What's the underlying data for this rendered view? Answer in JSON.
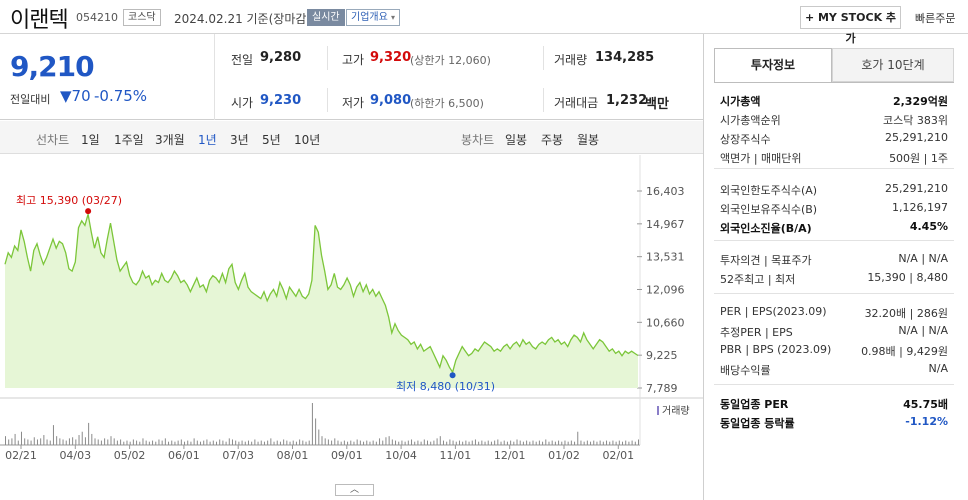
{
  "header": {
    "name": "이랜텍",
    "code": "054210",
    "market": "코스닥",
    "date": "2024.02.21 기준(장마감)",
    "live": "실시간",
    "corp_overview": "기업개요",
    "mystock": "+ MY STOCK 추가",
    "quick_order": "빠른주문"
  },
  "summary": {
    "price": "9,210",
    "change_label": "전일대비",
    "change_value": "▼70",
    "change_pct": "-0.75%",
    "prev_label": "전일",
    "prev": "9,280",
    "high_label": "고가",
    "high": "9,320",
    "high_sub": "(상한가 12,060)",
    "volume_label": "거래량",
    "volume": "134,285",
    "open_label": "시가",
    "open": "9,230",
    "low_label": "저가",
    "low": "9,080",
    "low_sub": "(하한가 6,500)",
    "amount_label": "거래대금",
    "amount": "1,232",
    "amount_unit": "백만"
  },
  "tabs": {
    "line_label": "선차트",
    "line": [
      "1일",
      "1주일",
      "3개월",
      "1년",
      "3년",
      "5년",
      "10년"
    ],
    "selected": "1년",
    "candle_label": "봉차트",
    "candle": [
      "일봉",
      "주봉",
      "월봉"
    ]
  },
  "chart_data": {
    "type": "area",
    "y_ticks": [
      "16,403",
      "14,967",
      "13,531",
      "12,096",
      "10,660",
      "9,225",
      "7,789"
    ],
    "ylim": [
      7789,
      16403
    ],
    "x_ticks": [
      "02/21",
      "04/03",
      "05/02",
      "06/01",
      "07/03",
      "08/01",
      "09/01",
      "10/04",
      "11/01",
      "12/01",
      "01/02",
      "02/01"
    ],
    "max_label": "최고 15,390 (03/27)",
    "min_label": "최저 8,480 (10/31)",
    "volume_label": "거래량",
    "colors": {
      "line": "#7cc63a",
      "fill": "#e6f6d6",
      "max": "#d30a0a",
      "min": "#2057c4"
    },
    "values": [
      13200,
      13700,
      13500,
      14000,
      13800,
      14700,
      14200,
      13500,
      12900,
      13800,
      14100,
      13600,
      13200,
      13500,
      13900,
      14300,
      13900,
      14200,
      14100,
      13700,
      13000,
      12900,
      13300,
      14800,
      15100,
      14900,
      15390,
      14600,
      13900,
      14400,
      13700,
      13500,
      14300,
      15000,
      14200,
      13400,
      12900,
      13100,
      13300,
      12700,
      12400,
      12300,
      12500,
      12900,
      12600,
      12700,
      12300,
      12500,
      12400,
      12800,
      12500,
      12400,
      12600,
      12900,
      12700,
      12400,
      12500,
      12300,
      12000,
      12300,
      12600,
      12200,
      12300,
      12000,
      12500,
      12700,
      12600,
      12400,
      12800,
      12400,
      13000,
      13200,
      12400,
      12100,
      12500,
      12800,
      12200,
      12000,
      11900,
      11800,
      11700,
      12000,
      11600,
      11900,
      12100,
      11800,
      12400,
      12100,
      11700,
      12200,
      12000,
      11800,
      12100,
      11800,
      11700,
      11900,
      12500,
      14900,
      14600,
      13600,
      12900,
      12100,
      12300,
      12800,
      12200,
      12100,
      12300,
      12600,
      12300,
      11800,
      12200,
      12400,
      12000,
      12300,
      11900,
      12100,
      11800,
      12000,
      11700,
      11400,
      10900,
      10200,
      10600,
      10300,
      10100,
      10000,
      9900,
      9700,
      9800,
      9500,
      9700,
      9400,
      9500,
      9600,
      9300,
      9000,
      8700,
      9200,
      9000,
      8700,
      8480,
      9000,
      9300,
      9600,
      9400,
      9200,
      9300,
      9500,
      9400,
      9600,
      9800,
      9700,
      9600,
      9400,
      9500,
      9400,
      9600,
      9700,
      9500,
      9700,
      9800,
      9600,
      9900,
      9700,
      9800,
      9600,
      9500,
      9700,
      9800,
      9700,
      9900,
      10000,
      9800,
      9900,
      9700,
      9800,
      9600,
      9900,
      10100,
      10000,
      9800,
      10200,
      9900,
      9700,
      9500,
      9700,
      9900,
      9800,
      9600,
      9400,
      9500,
      9300,
      9400,
      9200,
      9400,
      9300,
      9400,
      9300,
      9210
    ],
    "volumes": [
      8,
      5,
      6,
      10,
      4,
      12,
      6,
      5,
      4,
      7,
      5,
      6,
      9,
      5,
      4,
      18,
      8,
      6,
      5,
      4,
      6,
      7,
      5,
      9,
      12,
      7,
      20,
      10,
      6,
      5,
      4,
      6,
      5,
      8,
      6,
      4,
      5,
      3,
      4,
      3,
      5,
      4,
      3,
      6,
      4,
      3,
      4,
      3,
      5,
      4,
      6,
      3,
      4,
      3,
      4,
      5,
      3,
      4,
      3,
      6,
      4,
      3,
      4,
      5,
      3,
      4,
      3,
      5,
      4,
      3,
      6,
      5,
      4,
      3,
      4,
      3,
      4,
      3,
      5,
      3,
      4,
      3,
      4,
      6,
      3,
      4,
      3,
      5,
      4,
      3,
      4,
      3,
      5,
      4,
      3,
      4,
      38,
      24,
      14,
      8,
      6,
      5,
      4,
      6,
      4,
      3,
      4,
      3,
      4,
      3,
      5,
      4,
      3,
      4,
      3,
      4,
      3,
      6,
      4,
      7,
      8,
      5,
      4,
      3,
      4,
      3,
      4,
      5,
      3,
      4,
      3,
      5,
      4,
      3,
      4,
      6,
      8,
      4,
      3,
      5,
      4,
      3,
      4,
      3,
      4,
      3,
      4,
      5,
      3,
      4,
      3,
      4,
      3,
      4,
      5,
      3,
      4,
      3,
      4,
      3,
      5,
      4,
      3,
      4,
      3,
      4,
      3,
      4,
      3,
      5,
      3,
      4,
      3,
      4,
      3,
      4,
      3,
      4,
      3,
      12,
      4,
      3,
      4,
      3,
      4,
      3,
      4,
      3,
      4,
      3,
      4,
      3,
      4,
      3,
      4,
      3,
      4,
      3,
      5
    ]
  },
  "panel": {
    "tab_invest": "투자정보",
    "tab_hoga": "호가 10단계",
    "rows_a": [
      {
        "label": "시가총액",
        "value": "2,329억원"
      },
      {
        "label": "시가총액순위",
        "value": "코스닥 383위"
      },
      {
        "label": "상장주식수",
        "value": "25,291,210"
      },
      {
        "label": "액면가 | 매매단위",
        "value": "500원 | 1주"
      }
    ],
    "rows_b": [
      {
        "label": "외국인한도주식수(A)",
        "value": "25,291,210"
      },
      {
        "label": "외국인보유주식수(B)",
        "value": "1,126,197"
      },
      {
        "label": "외국인소진율(B/A)",
        "value": "4.45%"
      }
    ],
    "rows_c": [
      {
        "label": "투자의견 | 목표주가",
        "value": "N/A | N/A"
      },
      {
        "label": "52주최고 | 최저",
        "value": "15,390 | 8,480"
      }
    ],
    "rows_d": [
      {
        "label": "PER | EPS(2023.09)",
        "value": "32.20배 | 286원"
      },
      {
        "label": "추정PER | EPS",
        "value": "N/A | N/A"
      },
      {
        "label": "PBR | BPS (2023.09)",
        "value": "0.98배 | 9,429원"
      },
      {
        "label": "배당수익률",
        "value": "N/A"
      }
    ],
    "rows_e": [
      {
        "label": "동일업종 PER",
        "value": "45.75배"
      },
      {
        "label": "동일업종 등락률",
        "value": "-1.12%"
      }
    ]
  }
}
